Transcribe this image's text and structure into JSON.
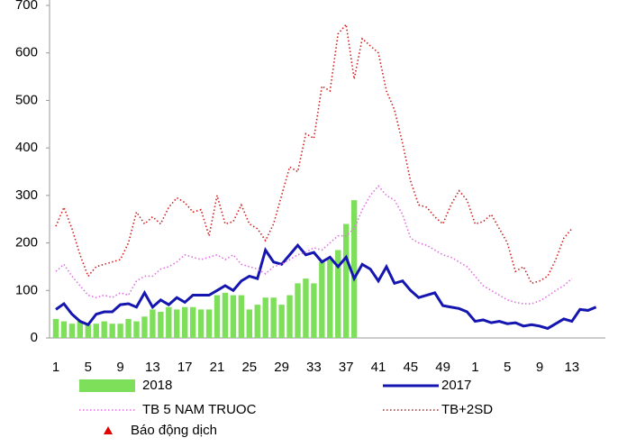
{
  "chart_data": {
    "type": "bar_line",
    "categories": [
      "1",
      null,
      null,
      null,
      "5",
      null,
      null,
      null,
      "9",
      null,
      null,
      null,
      "13",
      null,
      null,
      null,
      "17",
      null,
      null,
      null,
      "21",
      null,
      null,
      null,
      "25",
      null,
      null,
      null,
      "29",
      null,
      null,
      null,
      "33",
      null,
      null,
      null,
      "37",
      null,
      null,
      null,
      "41",
      null,
      null,
      null,
      "45",
      null,
      null,
      null,
      "49",
      null,
      null,
      null,
      "1",
      null,
      null,
      null,
      "5",
      null,
      null,
      null,
      "9",
      null,
      null,
      null,
      "13",
      null,
      null,
      null
    ],
    "ylim": [
      0,
      700
    ],
    "yticks": [
      0,
      100,
      200,
      300,
      400,
      500,
      600,
      700
    ],
    "series": [
      {
        "name": "2018",
        "type": "bar",
        "color": "#7ee05a",
        "values": [
          40,
          35,
          30,
          35,
          28,
          30,
          35,
          30,
          30,
          40,
          35,
          45,
          60,
          55,
          65,
          60,
          65,
          65,
          60,
          60,
          90,
          95,
          90,
          90,
          60,
          70,
          85,
          85,
          70,
          90,
          115,
          125,
          115,
          160,
          165,
          185,
          240,
          290,
          null,
          null,
          null,
          null,
          null,
          null,
          null,
          null,
          null,
          null,
          null,
          null,
          null,
          null,
          null,
          null,
          null,
          null,
          null,
          null,
          null,
          null,
          null,
          null,
          null,
          null,
          null,
          null,
          null,
          null
        ]
      },
      {
        "name": "2017",
        "type": "line",
        "color": "#1515b0",
        "values": [
          60,
          72,
          50,
          35,
          28,
          50,
          55,
          55,
          70,
          72,
          65,
          95,
          65,
          80,
          70,
          85,
          75,
          90,
          90,
          90,
          100,
          110,
          100,
          120,
          130,
          125,
          185,
          160,
          155,
          175,
          195,
          175,
          180,
          160,
          170,
          150,
          170,
          125,
          155,
          145,
          120,
          150,
          115,
          120,
          100,
          85,
          90,
          95,
          68,
          65,
          62,
          55,
          35,
          38,
          32,
          35,
          30,
          32,
          25,
          28,
          25,
          20,
          30,
          40,
          35,
          60,
          58,
          65
        ]
      },
      {
        "name": "TB 5 NAM TRUOC",
        "type": "dotted",
        "color": "#e070e0",
        "values": [
          140,
          155,
          130,
          110,
          90,
          85,
          90,
          85,
          95,
          90,
          120,
          130,
          130,
          145,
          150,
          160,
          175,
          170,
          165,
          170,
          175,
          165,
          175,
          155,
          150,
          145,
          135,
          150,
          155,
          165,
          175,
          180,
          190,
          185,
          200,
          215,
          215,
          230,
          270,
          300,
          320,
          300,
          290,
          260,
          210,
          200,
          195,
          185,
          175,
          170,
          160,
          150,
          130,
          110,
          100,
          90,
          80,
          75,
          72,
          72,
          78,
          88,
          100,
          110,
          125,
          null,
          null,
          null
        ]
      },
      {
        "name": "TB+2SD",
        "type": "dotted",
        "color": "#d02020",
        "values": [
          235,
          275,
          230,
          175,
          130,
          150,
          155,
          160,
          165,
          200,
          265,
          240,
          255,
          240,
          275,
          295,
          285,
          265,
          270,
          215,
          300,
          240,
          245,
          280,
          240,
          230,
          205,
          240,
          300,
          360,
          350,
          430,
          420,
          530,
          520,
          640,
          660,
          545,
          630,
          615,
          600,
          520,
          480,
          410,
          330,
          280,
          275,
          255,
          240,
          280,
          310,
          290,
          240,
          245,
          260,
          230,
          200,
          140,
          150,
          115,
          120,
          130,
          165,
          210,
          230,
          null,
          null,
          null
        ]
      }
    ],
    "alert_legend": {
      "name": "Báo động dịch",
      "color": "#e00000"
    }
  }
}
